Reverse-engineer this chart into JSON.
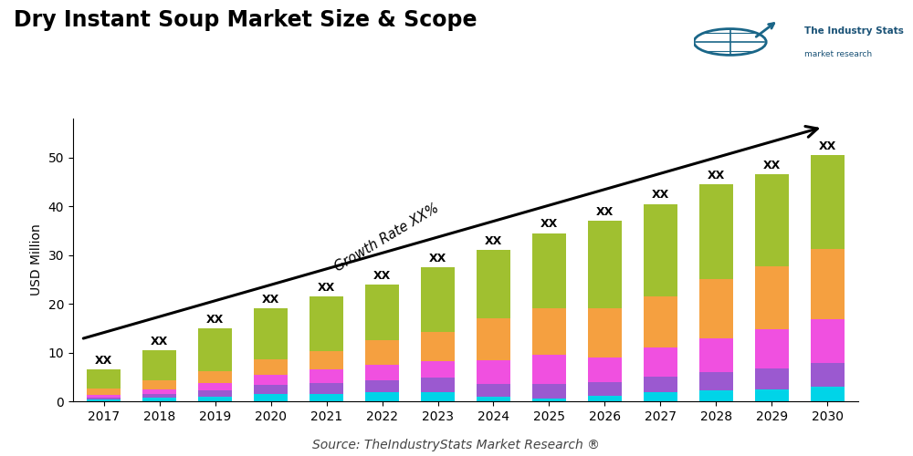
{
  "title": "Dry Instant Soup Market Size & Scope",
  "ylabel": "USD Million",
  "source": "Source: TheIndustryStats Market Research ®",
  "years": [
    2017,
    2018,
    2019,
    2020,
    2021,
    2022,
    2023,
    2024,
    2025,
    2026,
    2027,
    2028,
    2029,
    2030
  ],
  "bar_label": "XX",
  "growth_label": "Growth Rate XX%",
  "ylim": [
    0,
    58
  ],
  "yticks": [
    0,
    10,
    20,
    30,
    40,
    50
  ],
  "bar_totals": [
    6.5,
    10.5,
    15.0,
    19.0,
    21.5,
    24.0,
    27.5,
    31.0,
    34.5,
    37.0,
    40.5,
    44.5,
    46.5,
    50.5
  ],
  "segments": {
    "cyan": [
      0.3,
      0.7,
      1.0,
      1.5,
      1.5,
      1.8,
      1.8,
      1.0,
      0.5,
      1.2,
      1.8,
      2.2,
      2.5,
      3.0
    ],
    "purple": [
      0.4,
      0.8,
      1.2,
      1.8,
      2.2,
      2.5,
      3.0,
      2.5,
      3.0,
      2.8,
      3.2,
      3.8,
      4.2,
      4.8
    ],
    "magenta": [
      0.7,
      1.0,
      1.5,
      2.2,
      2.8,
      3.2,
      3.5,
      5.0,
      6.0,
      5.0,
      6.0,
      7.0,
      8.0,
      9.0
    ],
    "orange": [
      1.2,
      1.8,
      2.5,
      3.2,
      3.8,
      5.0,
      6.0,
      8.5,
      9.5,
      10.0,
      10.5,
      12.0,
      13.0,
      14.5
    ],
    "green": [
      3.9,
      6.2,
      8.8,
      10.3,
      11.2,
      11.5,
      13.2,
      14.0,
      15.5,
      18.0,
      19.0,
      19.5,
      18.8,
      19.2
    ]
  },
  "colors": {
    "cyan": "#00d4e8",
    "purple": "#9b59d0",
    "magenta": "#f050e0",
    "orange": "#f5a040",
    "green": "#a0c030"
  },
  "background_color": "#ffffff",
  "title_fontsize": 17,
  "axis_fontsize": 10,
  "tick_fontsize": 10,
  "source_fontsize": 10
}
